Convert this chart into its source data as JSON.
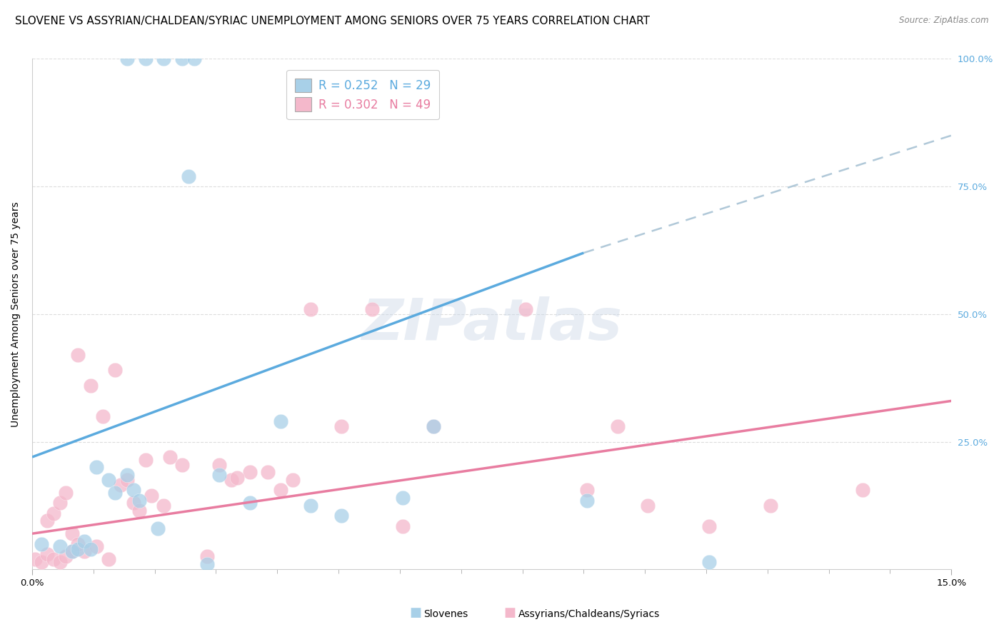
{
  "title": "SLOVENE VS ASSYRIAN/CHALDEAN/SYRIAC UNEMPLOYMENT AMONG SENIORS OVER 75 YEARS CORRELATION CHART",
  "source": "Source: ZipAtlas.com",
  "ylabel": "Unemployment Among Seniors over 75 years",
  "xlim": [
    0.0,
    15.0
  ],
  "ylim": [
    0.0,
    100.0
  ],
  "blue_color": "#a8d0e8",
  "pink_color": "#f4b8cb",
  "blue_line_color": "#5baade",
  "pink_line_color": "#e87ca0",
  "blue_trend_x": [
    0.0,
    9.0
  ],
  "blue_trend_y": [
    22.0,
    62.0
  ],
  "dash_trend_x": [
    9.0,
    15.0
  ],
  "dash_trend_y": [
    62.0,
    85.0
  ],
  "pink_trend_x": [
    0.0,
    15.0
  ],
  "pink_trend_y": [
    7.0,
    33.0
  ],
  "blue_x": [
    1.55,
    1.85,
    2.15,
    2.45,
    2.65,
    2.55,
    0.15,
    0.45,
    0.65,
    0.75,
    0.85,
    0.95,
    1.05,
    1.25,
    1.35,
    1.55,
    1.65,
    1.75,
    2.05,
    2.85,
    3.05,
    3.55,
    4.55,
    5.05,
    6.05,
    9.05,
    11.05,
    6.55,
    4.05
  ],
  "blue_y": [
    100.0,
    100.0,
    100.0,
    100.0,
    100.0,
    77.0,
    5.0,
    4.5,
    3.5,
    4.0,
    5.5,
    4.0,
    20.0,
    17.5,
    15.0,
    18.5,
    15.5,
    13.5,
    8.0,
    1.0,
    18.5,
    13.0,
    12.5,
    10.5,
    14.0,
    13.5,
    1.5,
    28.0,
    29.0
  ],
  "pink_x": [
    0.05,
    0.15,
    0.25,
    0.35,
    0.45,
    0.55,
    0.65,
    0.75,
    0.85,
    0.95,
    1.05,
    1.15,
    1.25,
    1.35,
    1.45,
    1.55,
    1.65,
    1.75,
    1.95,
    2.15,
    2.45,
    2.85,
    3.05,
    3.25,
    3.55,
    3.85,
    4.05,
    4.25,
    4.55,
    5.05,
    5.55,
    6.05,
    6.55,
    8.05,
    9.05,
    9.55,
    10.05,
    11.05,
    12.05,
    13.55,
    0.25,
    0.35,
    0.45,
    0.55,
    0.65,
    0.75,
    1.85,
    2.25,
    3.35
  ],
  "pink_y": [
    2.0,
    1.5,
    3.0,
    2.0,
    1.5,
    2.5,
    3.5,
    42.0,
    3.5,
    36.0,
    4.5,
    30.0,
    2.0,
    39.0,
    16.5,
    17.5,
    13.0,
    11.5,
    14.5,
    12.5,
    20.5,
    2.5,
    20.5,
    17.5,
    19.0,
    19.0,
    15.5,
    17.5,
    51.0,
    28.0,
    51.0,
    8.5,
    28.0,
    51.0,
    15.5,
    28.0,
    12.5,
    8.5,
    12.5,
    15.5,
    9.5,
    11.0,
    13.0,
    15.0,
    7.0,
    5.0,
    21.5,
    22.0,
    18.0
  ],
  "watermark": "ZIPatlas",
  "title_fontsize": 11,
  "axis_label_fontsize": 10,
  "tick_fontsize": 9.5,
  "legend_fontsize": 12
}
